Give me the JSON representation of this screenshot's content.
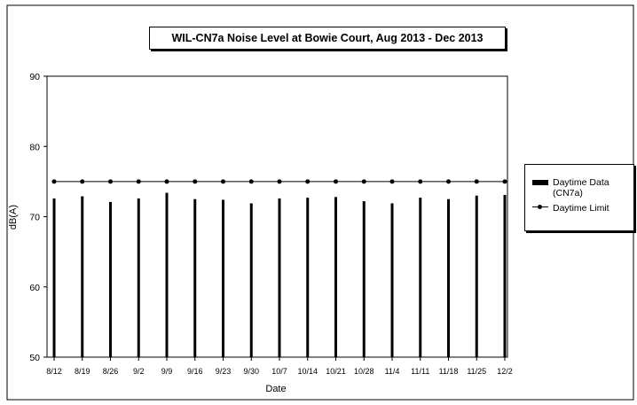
{
  "chart_data": {
    "type": "bar",
    "title": "WIL-CN7a Noise Level at Bowie Court, Aug 2013 - Dec 2013",
    "xlabel": "Date",
    "ylabel": "dB(A)",
    "ylim": [
      50,
      90
    ],
    "yticks": [
      50,
      60,
      70,
      80,
      90
    ],
    "categories": [
      "8/12",
      "8/19",
      "8/26",
      "9/2",
      "9/9",
      "9/16",
      "9/23",
      "9/30",
      "10/7",
      "10/14",
      "10/21",
      "10/28",
      "11/4",
      "11/11",
      "11/18",
      "11/25",
      "12/2"
    ],
    "series": [
      {
        "name": "Daytime Data (CN7a)",
        "type": "bar",
        "color": "#000000",
        "values": [
          72.6,
          72.9,
          72.1,
          72.6,
          73.4,
          72.5,
          72.4,
          71.9,
          72.6,
          72.7,
          72.8,
          72.2,
          71.9,
          72.7,
          72.5,
          73.0,
          73.1
        ]
      },
      {
        "name": "Daytime Limit",
        "type": "line",
        "color": "#000000",
        "values": [
          75,
          75,
          75,
          75,
          75,
          75,
          75,
          75,
          75,
          75,
          75,
          75,
          75,
          75,
          75,
          75,
          75
        ]
      }
    ],
    "legend": {
      "position": "right",
      "items": [
        "Daytime Data (CN7a)",
        "Daytime Limit"
      ]
    },
    "grid": false
  }
}
